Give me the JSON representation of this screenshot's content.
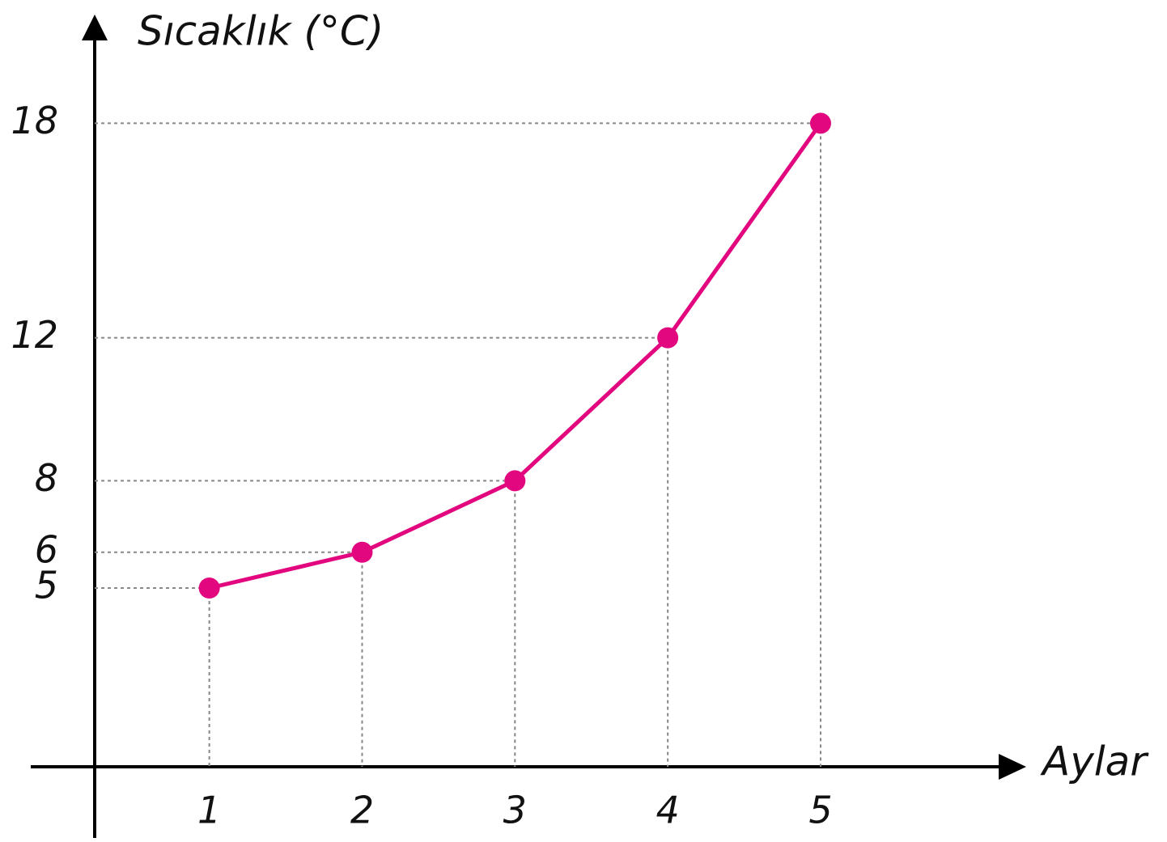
{
  "chart_data": {
    "type": "line",
    "y_label": "Sıcaklık (°C)",
    "x_label": "Aylar",
    "x": [
      1,
      2,
      3,
      4,
      5
    ],
    "series": [
      {
        "name": null,
        "color": "#e2077f",
        "values": [
          5,
          6,
          8,
          12,
          18
        ]
      }
    ],
    "xlim": [
      0.25,
      6.25
    ],
    "ylim": [
      0,
      20
    ],
    "yticks": [
      5,
      6,
      8,
      12,
      18
    ],
    "grid": "dotted"
  }
}
